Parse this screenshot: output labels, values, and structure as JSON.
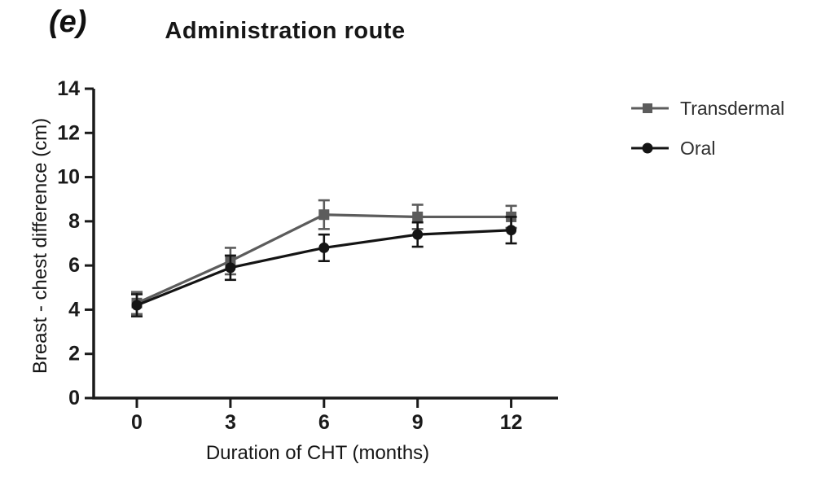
{
  "figure": {
    "panel_label": "(e)"
  },
  "chart_data": {
    "type": "line",
    "title": "Administration route",
    "xlabel": "Duration of CHT (months)",
    "ylabel": "Breast - chest difference (cm)",
    "x": [
      0,
      3,
      6,
      9,
      12
    ],
    "xticks": [
      0,
      3,
      6,
      9,
      12
    ],
    "yticks": [
      0,
      2,
      4,
      6,
      8,
      10,
      12,
      14
    ],
    "ylim": [
      0,
      14
    ],
    "grid": false,
    "legend_position": "right",
    "error_bars": true,
    "axis_color": "#1a1a1a",
    "series": [
      {
        "name": "Transdermal",
        "marker": "square",
        "color": "#5c5c5c",
        "values": [
          4.3,
          6.2,
          8.3,
          8.2,
          8.2
        ],
        "errors": [
          0.5,
          0.6,
          0.65,
          0.55,
          0.5
        ]
      },
      {
        "name": "Oral",
        "marker": "circle",
        "color": "#141414",
        "values": [
          4.2,
          5.9,
          6.8,
          7.4,
          7.6
        ],
        "errors": [
          0.5,
          0.55,
          0.6,
          0.55,
          0.6
        ]
      }
    ]
  }
}
